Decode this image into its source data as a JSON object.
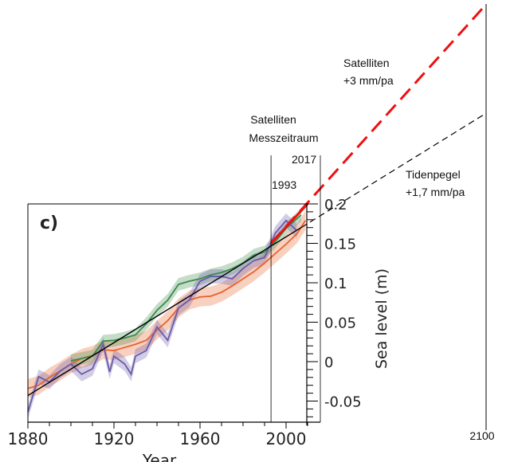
{
  "chart_data": {
    "type": "line",
    "panel_label": "c)",
    "xlabel": "Year",
    "ylabel": "Sea level (m)",
    "xlim": [
      1880,
      2100
    ],
    "ylim": [
      -0.077,
      0.2
    ],
    "x_ticks": [
      1880,
      1920,
      1960,
      2000
    ],
    "x_tick_labels": [
      "1880",
      "1920",
      "1960",
      "2000"
    ],
    "x_extra_label": "2100",
    "y_ticks": [
      0.2,
      0.15,
      0.1,
      0.05,
      0,
      -0.05
    ],
    "y_tick_labels": [
      "0.2",
      "0.15",
      "0.1",
      "0.05",
      "0",
      "-0.05"
    ],
    "colors": {
      "green": "#3a8a4a",
      "orange": "#e8622c",
      "purple": "#6a5aa8",
      "red": "#ee1111",
      "trend": "#000000"
    },
    "series": [
      {
        "color": "orange",
        "x": [
          1880,
          1885,
          1890,
          1895,
          1900,
          1905,
          1910,
          1915,
          1920,
          1925,
          1930,
          1935,
          1940,
          1945,
          1950,
          1955,
          1960,
          1965,
          1970,
          1975,
          1980,
          1985,
          1990,
          1995,
          2000,
          2005,
          2009
        ],
        "y": [
          -0.034,
          -0.03,
          -0.02,
          -0.012,
          -0.003,
          0.004,
          0.008,
          0.015,
          0.014,
          0.018,
          0.022,
          0.027,
          0.04,
          0.052,
          0.068,
          0.078,
          0.082,
          0.083,
          0.088,
          0.096,
          0.105,
          0.114,
          0.125,
          0.137,
          0.149,
          0.162,
          0.179
        ]
      },
      {
        "color": "green",
        "x": [
          1900,
          1905,
          1910,
          1915,
          1920,
          1925,
          1930,
          1935,
          1940,
          1945,
          1950,
          1955,
          1960,
          1965,
          1970,
          1975,
          1980,
          1985,
          1990,
          1995,
          2000,
          2007
        ],
        "y": [
          0.001,
          0.004,
          0.007,
          0.026,
          0.027,
          0.03,
          0.034,
          0.048,
          0.065,
          0.078,
          0.098,
          0.102,
          0.105,
          0.11,
          0.113,
          0.118,
          0.125,
          0.135,
          0.139,
          0.152,
          0.169,
          0.186
        ]
      },
      {
        "color": "purple",
        "x": [
          1880,
          1885,
          1890,
          1895,
          1900,
          1905,
          1910,
          1915,
          1918,
          1920,
          1925,
          1928,
          1930,
          1935,
          1940,
          1945,
          1950,
          1955,
          1960,
          1965,
          1970,
          1975,
          1980,
          1985,
          1990,
          1995,
          2000,
          2005
        ],
        "y": [
          -0.064,
          -0.019,
          -0.026,
          -0.012,
          -0.003,
          -0.016,
          -0.009,
          0.022,
          -0.013,
          0.007,
          -0.003,
          -0.016,
          0.007,
          0.014,
          0.044,
          0.027,
          0.068,
          0.078,
          0.102,
          0.108,
          0.108,
          0.105,
          0.118,
          0.128,
          0.132,
          0.163,
          0.179,
          0.166
        ]
      }
    ],
    "trend_line": {
      "x": [
        1880,
        2007
      ],
      "y": [
        -0.043,
        0.17
      ]
    },
    "projections": [
      {
        "color": "red",
        "style": "dashed",
        "x": [
          1993,
          2100
        ],
        "y": [
          0.15,
          0.453
        ],
        "label": "Satelliten",
        "rate": "+3 mm/pa"
      },
      {
        "color": "trend",
        "style": "dashed",
        "x": [
          2007,
          2100
        ],
        "y": [
          0.17,
          0.315
        ],
        "label": "Tidenpegel",
        "rate": "+1,7 mm/pa"
      }
    ],
    "period": {
      "start": 1993,
      "end": 2017,
      "start_label": "1993",
      "end_label": "2017",
      "title_line1": "Satelliten",
      "title_line2": "Messzeitraum"
    }
  }
}
